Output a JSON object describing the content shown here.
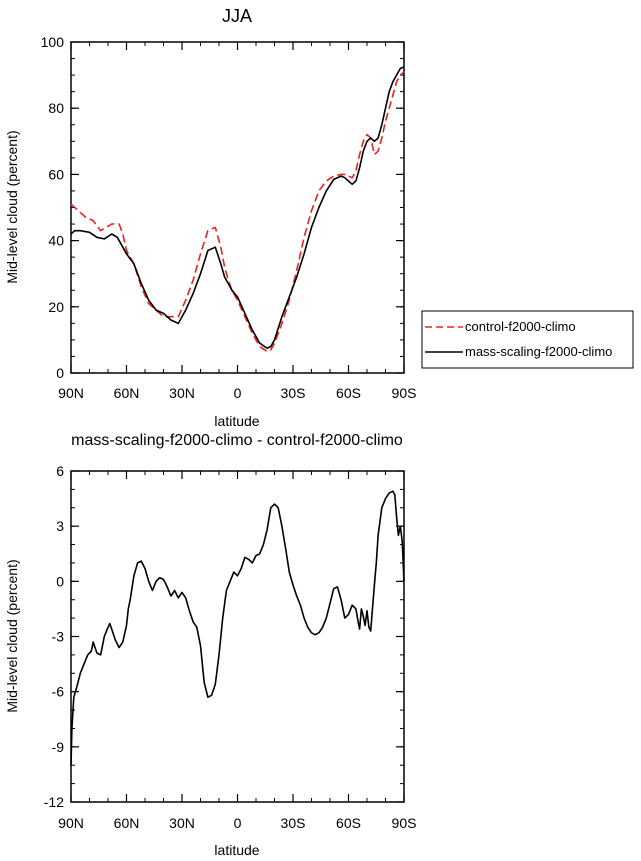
{
  "chart_data": [
    {
      "type": "line",
      "title": "JJA",
      "xlabel": "latitude",
      "ylabel": "Mid-level cloud (percent)",
      "xlim": [
        90,
        -90
      ],
      "ylim": [
        0,
        100
      ],
      "xticks": [
        {
          "v": 90,
          "label": "90N"
        },
        {
          "v": 60,
          "label": "60N"
        },
        {
          "v": 30,
          "label": "30N"
        },
        {
          "v": 0,
          "label": "0"
        },
        {
          "v": -30,
          "label": "30S"
        },
        {
          "v": -60,
          "label": "60S"
        },
        {
          "v": -90,
          "label": "90S"
        }
      ],
      "yticks": [
        {
          "v": 0,
          "label": "0"
        },
        {
          "v": 20,
          "label": "20"
        },
        {
          "v": 40,
          "label": "40"
        },
        {
          "v": 60,
          "label": "60"
        },
        {
          "v": 80,
          "label": "80"
        },
        {
          "v": 100,
          "label": "100"
        }
      ],
      "legend_position": "right",
      "series": [
        {
          "name": "control-f2000-climo",
          "color": "#e8231f",
          "dash": "dashed",
          "x": [
            90,
            86,
            82,
            78,
            74,
            71,
            68,
            64,
            62,
            60,
            56,
            52,
            48,
            44,
            40,
            36,
            32,
            28,
            24,
            20,
            16,
            12,
            9,
            7,
            5,
            3,
            0,
            -4,
            -8,
            -12,
            -16,
            -18,
            -20,
            -24,
            -28,
            -32,
            -36,
            -40,
            -44,
            -48,
            -52,
            -56,
            -58,
            -60,
            -62,
            -64,
            -66,
            -68,
            -70,
            -72,
            -74,
            -76,
            -78,
            -80,
            -82,
            -84,
            -86,
            -88,
            -90
          ],
          "y": [
            51,
            49,
            47,
            46,
            43,
            44,
            45,
            45,
            42,
            37,
            33,
            26,
            21,
            19,
            17,
            17,
            17,
            22,
            28,
            36,
            43,
            44,
            38,
            32,
            28,
            25,
            22,
            17,
            12,
            8,
            6.5,
            7,
            9,
            15,
            22,
            31,
            41,
            49,
            55,
            58,
            59.5,
            60,
            60,
            59.5,
            59,
            61,
            66,
            70,
            72,
            71,
            66,
            67,
            71,
            76,
            80,
            84,
            88,
            90,
            91
          ]
        },
        {
          "name": "mass-scaling-f2000-climo",
          "color": "#000000",
          "dash": "solid",
          "x": [
            90,
            88,
            85,
            80,
            76,
            72,
            68,
            65,
            62,
            60,
            56,
            52,
            48,
            44,
            40,
            36,
            32,
            28,
            24,
            20,
            16,
            12,
            9,
            7,
            5,
            3,
            0,
            -4,
            -8,
            -12,
            -16,
            -18,
            -20,
            -24,
            -28,
            -32,
            -36,
            -40,
            -44,
            -48,
            -52,
            -56,
            -58,
            -60,
            -62,
            -64,
            -66,
            -68,
            -70,
            -72,
            -74,
            -76,
            -78,
            -80,
            -82,
            -84,
            -86,
            -88,
            -90
          ],
          "y": [
            42,
            43,
            43,
            42.5,
            41,
            40.5,
            42,
            41,
            38,
            36,
            33,
            27,
            22,
            19,
            18,
            16,
            15,
            19,
            24,
            30,
            37,
            38,
            33,
            29,
            27,
            25,
            23,
            18,
            13,
            9,
            7.5,
            8,
            10,
            17,
            23,
            29,
            36,
            44,
            50,
            55,
            58.5,
            59.5,
            59,
            58,
            57,
            58,
            62,
            67,
            70,
            71,
            70,
            71,
            75,
            80,
            85,
            88,
            90,
            92,
            92.5
          ]
        }
      ]
    },
    {
      "type": "line",
      "title": "mass-scaling-f2000-climo - control-f2000-climo",
      "xlabel": "latitude",
      "ylabel": "Mid-level cloud (percent)",
      "xlim": [
        90,
        -90
      ],
      "ylim": [
        -12,
        6
      ],
      "xticks": [
        {
          "v": 90,
          "label": "90N"
        },
        {
          "v": 60,
          "label": "60N"
        },
        {
          "v": 30,
          "label": "30N"
        },
        {
          "v": 0,
          "label": "0"
        },
        {
          "v": -30,
          "label": "30S"
        },
        {
          "v": -60,
          "label": "60S"
        },
        {
          "v": -90,
          "label": "90S"
        }
      ],
      "yticks": [
        {
          "v": -12,
          "label": "-12"
        },
        {
          "v": -9,
          "label": "-9"
        },
        {
          "v": -6,
          "label": "-6"
        },
        {
          "v": -3,
          "label": "-3"
        },
        {
          "v": 0,
          "label": "0"
        },
        {
          "v": 3,
          "label": "3"
        },
        {
          "v": 6,
          "label": "6"
        }
      ],
      "series": [
        {
          "name": "",
          "color": "#000000",
          "dash": "solid",
          "x": [
            90,
            89.5,
            88.5,
            87,
            85,
            83,
            81,
            79,
            78,
            77,
            76,
            74,
            73,
            72,
            70,
            69,
            68,
            66,
            64,
            62,
            60,
            59,
            58,
            56,
            54,
            52,
            50,
            48,
            46,
            44,
            42,
            40,
            38,
            36,
            34,
            32,
            30,
            28,
            26,
            24,
            22,
            20,
            18,
            16,
            14,
            12,
            10,
            8,
            6,
            4,
            2,
            0,
            -2,
            -4,
            -6,
            -8,
            -10,
            -12,
            -14,
            -16,
            -18,
            -20,
            -22,
            -24,
            -26,
            -28,
            -30,
            -32,
            -34,
            -36,
            -38,
            -40,
            -42,
            -44,
            -46,
            -48,
            -50,
            -52,
            -54,
            -56,
            -58,
            -60,
            -62,
            -64,
            -65,
            -66,
            -67,
            -68,
            -69,
            -70,
            -71,
            -72,
            -73,
            -74,
            -75,
            -76,
            -78,
            -80,
            -82,
            -84,
            -85,
            -86,
            -87,
            -88,
            -89,
            -90
          ],
          "y": [
            -10,
            -8,
            -6.3,
            -5.8,
            -5,
            -4.5,
            -4,
            -3.8,
            -3.3,
            -3.6,
            -3.9,
            -4,
            -3.5,
            -3,
            -2.5,
            -2.3,
            -2.6,
            -3.2,
            -3.6,
            -3.3,
            -2.4,
            -1.5,
            -1,
            0.3,
            1,
            1.1,
            0.7,
            0,
            -0.5,
            0,
            0.2,
            0.1,
            -0.3,
            -0.8,
            -0.5,
            -0.9,
            -0.6,
            -0.9,
            -1.6,
            -2.2,
            -2.5,
            -3.5,
            -5.5,
            -6.3,
            -6.2,
            -5.6,
            -4,
            -2,
            -0.5,
            0,
            0.5,
            0.3,
            0.7,
            1.3,
            1.2,
            1,
            1.4,
            1.5,
            2,
            2.8,
            4,
            4.2,
            4,
            3,
            1.8,
            0.5,
            -0.2,
            -0.8,
            -1.3,
            -2,
            -2.5,
            -2.8,
            -2.9,
            -2.8,
            -2.5,
            -2,
            -1.2,
            -0.4,
            -0.3,
            -1,
            -2,
            -1.8,
            -1.3,
            -1.5,
            -2.1,
            -2.6,
            -1.5,
            -1.9,
            -2.4,
            -1.6,
            -2.5,
            -2.7,
            -1.4,
            -0.2,
            1,
            2.5,
            4,
            4.5,
            4.8,
            4.9,
            4.7,
            3.5,
            2.5,
            3,
            2.2,
            0
          ]
        }
      ]
    }
  ]
}
